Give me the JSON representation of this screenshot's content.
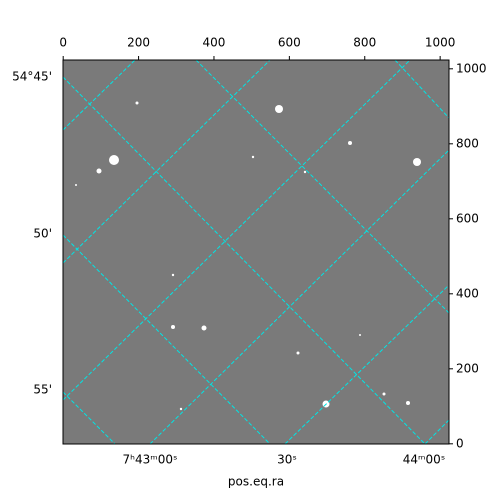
{
  "chart_data": {
    "type": "image",
    "xlabel": "pos.eq.ra",
    "xlim": [
      -0.5,
      1023.5
    ],
    "xticks": [
      0,
      200,
      400,
      600,
      800,
      1000
    ],
    "ylim": [
      -0.5,
      1023.5
    ],
    "yticks": [
      0,
      200,
      400,
      600,
      800,
      1000
    ],
    "ra_ticks": [
      "7ʰ43ᵐ00ˢ",
      "30ˢ",
      "44ᵐ00ˢ"
    ],
    "dec_ticks": [
      "54°45'",
      "50'",
      "55'"
    ],
    "grid_color": "#00e5e5"
  }
}
